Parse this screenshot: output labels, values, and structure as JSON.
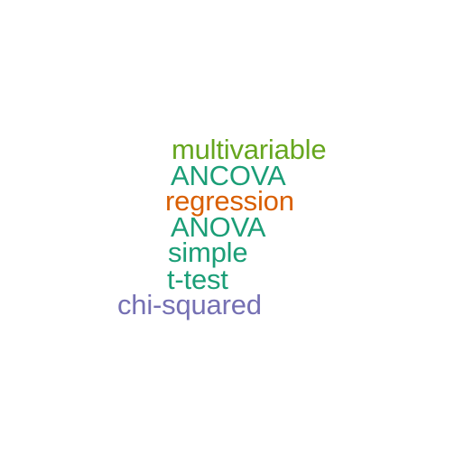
{
  "words": [
    {
      "text": "multivariable",
      "color": "#66a61e"
    },
    {
      "text": "ANCOVA",
      "color": "#1b9e77"
    },
    {
      "text": "regression",
      "color": "#d95f02"
    },
    {
      "text": "ANOVA",
      "color": "#1b9e77"
    },
    {
      "text": "simple",
      "color": "#1b9e77"
    },
    {
      "text": "t-test",
      "color": "#1b9e77"
    },
    {
      "text": "chi-squared",
      "color": "#7570b3"
    }
  ]
}
